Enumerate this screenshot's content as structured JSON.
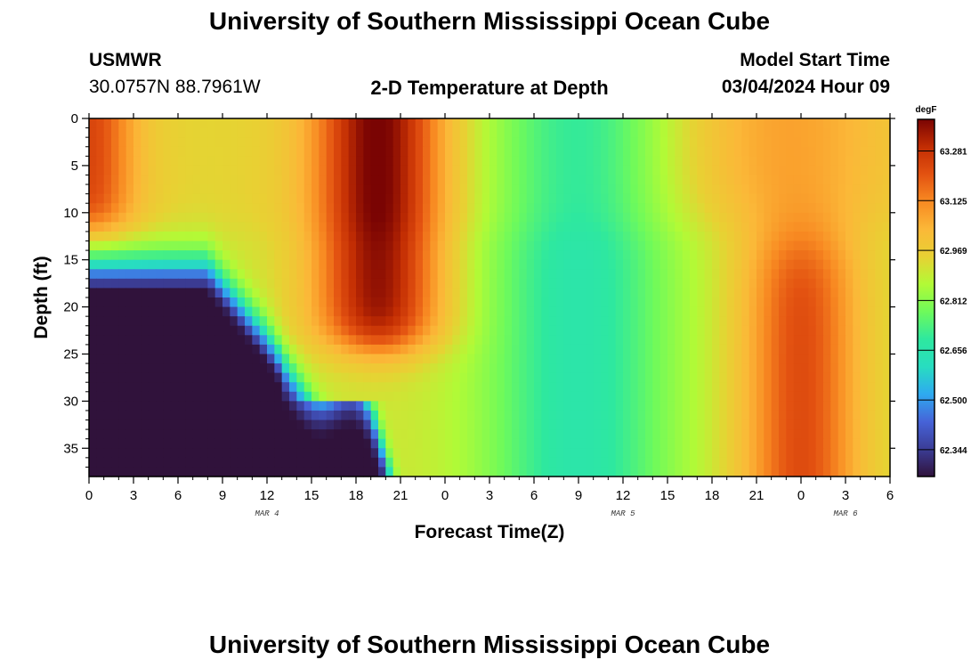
{
  "header": {
    "title": "University of Southern Mississippi Ocean Cube",
    "station": "USMWR",
    "coords": "30.0757N  88.7961W",
    "subtitle": "2-D Temperature at Depth",
    "model_start_label": "Model Start Time",
    "model_start_value": "03/04/2024 Hour 09"
  },
  "footer": {
    "title": "University of Southern Mississippi Ocean Cube"
  },
  "colors": {
    "stops": [
      "#30123b",
      "#3b3d96",
      "#4663d8",
      "#2eaaf0",
      "#28ddc0",
      "#2ee89f",
      "#6efa5b",
      "#b2fa36",
      "#e8d133",
      "#fbb838",
      "#f88a22",
      "#e35211",
      "#c22d03",
      "#7a0403"
    ]
  },
  "chart_data": {
    "type": "heatmap",
    "title": "2-D Temperature at Depth",
    "xlabel": "Forecast Time(Z)",
    "ylabel": "Depth (ft)",
    "x_tick_labels": [
      "0",
      "3",
      "6",
      "9",
      "12",
      "15",
      "18",
      "21",
      "0",
      "3",
      "6",
      "9",
      "12",
      "15",
      "18",
      "21",
      "0",
      "3",
      "6"
    ],
    "x_hours_range": [
      0,
      54
    ],
    "date_labels": [
      {
        "text": "MAR 4",
        "hour": 12
      },
      {
        "text": "MAR 5",
        "hour": 36
      },
      {
        "text": "MAR 6",
        "hour": 51
      }
    ],
    "y_ticks": [
      "0",
      "5",
      "10",
      "15",
      "20",
      "25",
      "30",
      "35"
    ],
    "ylim": [
      0,
      38
    ],
    "colorbar": {
      "unit": "degF",
      "labels": [
        "63.281",
        "63.125",
        "62.969",
        "62.812",
        "62.656",
        "62.500",
        "62.344"
      ],
      "range": [
        62.26,
        63.38
      ]
    }
  }
}
